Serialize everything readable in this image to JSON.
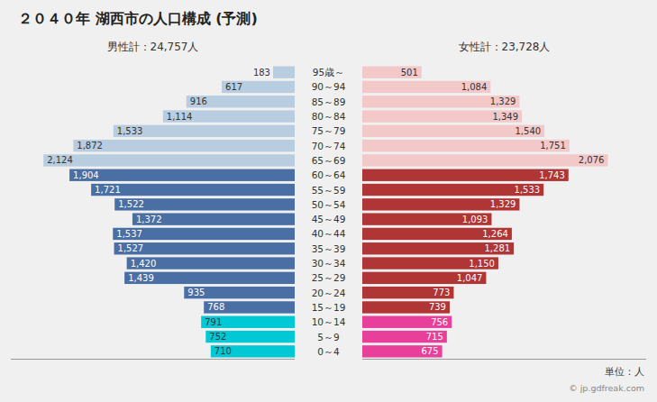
{
  "chart_data": {
    "type": "bar",
    "orientation": "horizontal",
    "title": "２０４０年 湖西市の人口構成 (予測)",
    "categories": [
      "95歳～",
      "90～94",
      "85～89",
      "80～84",
      "75～79",
      "70～74",
      "65～69",
      "60～64",
      "55～59",
      "50～54",
      "45～49",
      "40～44",
      "35～39",
      "30～34",
      "25～29",
      "20～24",
      "15～19",
      "10～14",
      "5～9",
      "0～4"
    ],
    "series": [
      {
        "name": "男性計：24,757人",
        "values": [
          183,
          617,
          916,
          1114,
          1533,
          1872,
          2124,
          1904,
          1721,
          1522,
          1372,
          1537,
          1527,
          1420,
          1439,
          935,
          768,
          791,
          752,
          710
        ],
        "value_labels": [
          "183",
          "617",
          "916",
          "1,114",
          "1,533",
          "1,872",
          "2,124",
          "1,904",
          "1,721",
          "1,522",
          "1,372",
          "1,537",
          "1,527",
          "1,420",
          "1,439",
          "935",
          "768",
          "791",
          "752",
          "710"
        ],
        "colors": [
          "#b8cde0",
          "#b8cde0",
          "#b8cde0",
          "#b8cde0",
          "#b8cde0",
          "#b8cde0",
          "#b8cde0",
          "#4a6fa5",
          "#4a6fa5",
          "#4a6fa5",
          "#4a6fa5",
          "#4a6fa5",
          "#4a6fa5",
          "#4a6fa5",
          "#4a6fa5",
          "#4a6fa5",
          "#4a6fa5",
          "#00c8d4",
          "#00c8d4",
          "#00c8d4"
        ]
      },
      {
        "name": "女性計：23,728人",
        "values": [
          501,
          1084,
          1329,
          1349,
          1540,
          1751,
          2076,
          1743,
          1533,
          1329,
          1093,
          1264,
          1281,
          1150,
          1047,
          773,
          739,
          756,
          715,
          675
        ],
        "value_labels": [
          "501",
          "1,084",
          "1,329",
          "1,349",
          "1,540",
          "1,751",
          "2,076",
          "1,743",
          "1,533",
          "1,329",
          "1,093",
          "1,264",
          "1,281",
          "1,150",
          "1,047",
          "773",
          "739",
          "756",
          "715",
          "675"
        ],
        "colors": [
          "#f2c8c8",
          "#f2c8c8",
          "#f2c8c8",
          "#f2c8c8",
          "#f2c8c8",
          "#f2c8c8",
          "#f2c8c8",
          "#b03535",
          "#b03535",
          "#b03535",
          "#b03535",
          "#b03535",
          "#b03535",
          "#b03535",
          "#b03535",
          "#b03535",
          "#b03535",
          "#e8409a",
          "#e8409a",
          "#e8409a"
        ]
      }
    ],
    "xlim": [
      0,
      2400
    ],
    "data_labels": true,
    "tick_labels": false,
    "annotations": [
      "単位：人",
      "© jp.gdfreak.com"
    ]
  }
}
